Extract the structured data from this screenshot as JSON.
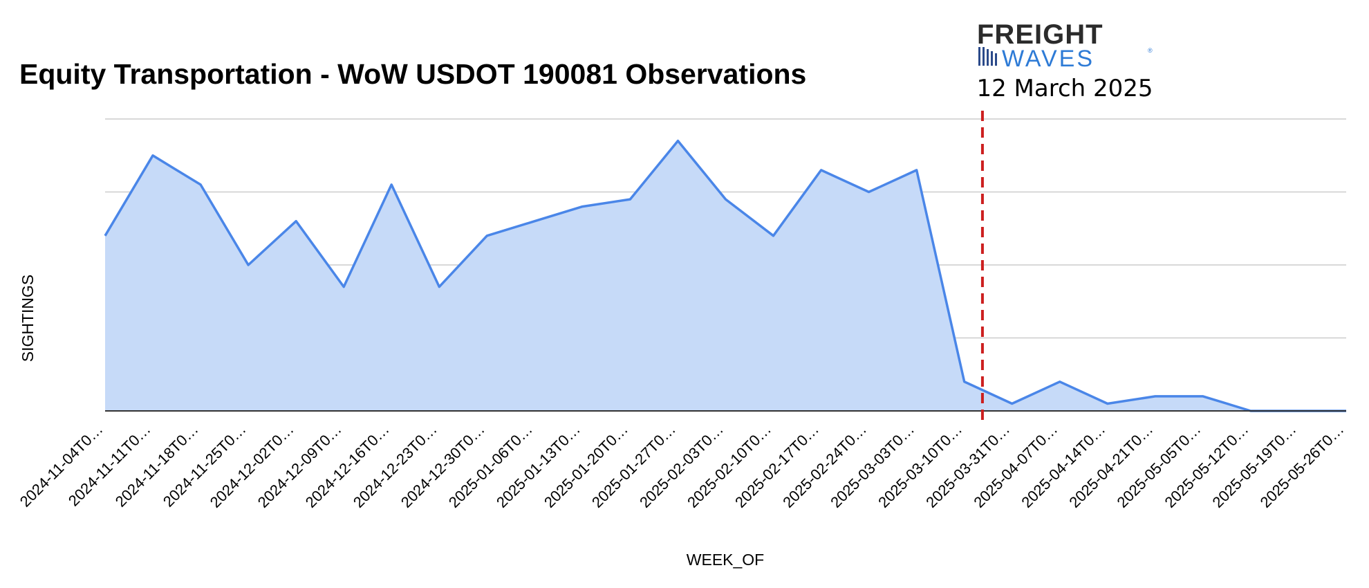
{
  "chart_data": {
    "type": "area",
    "title": "Equity Transportation - WoW USDOT 190081 Observations",
    "xlabel": "WEEK_OF",
    "ylabel": "SIGHTINGS",
    "x": [
      "2024-11-04T0…",
      "2024-11-11T0…",
      "2024-11-18T0…",
      "2024-11-25T0…",
      "2024-12-02T0…",
      "2024-12-09T0…",
      "2024-12-16T0…",
      "2024-12-23T0…",
      "2024-12-30T0…",
      "2025-01-06T0…",
      "2025-01-13T0…",
      "2025-01-20T0…",
      "2025-01-27T0…",
      "2025-02-03T0…",
      "2025-02-10T0…",
      "2025-02-17T0…",
      "2025-02-24T0…",
      "2025-03-03T0…",
      "2025-03-10T0…",
      "2025-03-31T0…",
      "2025-04-07T0…",
      "2025-04-14T0…",
      "2025-04-21T0…",
      "2025-05-05T0…",
      "2025-05-12T0…",
      "2025-05-19T0…",
      "2025-05-26T0…"
    ],
    "values": [
      2.4,
      3.5,
      3.1,
      2.0,
      2.6,
      1.7,
      3.1,
      1.7,
      2.4,
      2.6,
      2.8,
      2.9,
      3.7,
      2.9,
      2.4,
      3.3,
      3.0,
      3.3,
      0.4,
      0.1,
      0.4,
      0.1,
      0.2,
      0.2,
      0.0,
      0.0,
      0.0
    ],
    "ylim": [
      0,
      4
    ],
    "y_gridlines": [
      0,
      1,
      2,
      3,
      4
    ],
    "y_tick_labels_shown": false,
    "grid": true,
    "legend": "none",
    "colors": {
      "line": "#4a86e8",
      "fill": "#c6daf8",
      "grid": "#cccccc",
      "axis": "#333333",
      "marker": "#cc1f1f"
    },
    "annotation": {
      "type": "vertical-dashed-line",
      "date": "12 March 2025",
      "between": [
        "2025-03-10T0…",
        "2025-03-31T0…"
      ],
      "fraction": 0.38,
      "color": "#cc1f1f"
    }
  },
  "logo": {
    "line1": "FREIGHT",
    "line2": "WAVES",
    "registered": "®",
    "date_text": "12 March 2025"
  }
}
